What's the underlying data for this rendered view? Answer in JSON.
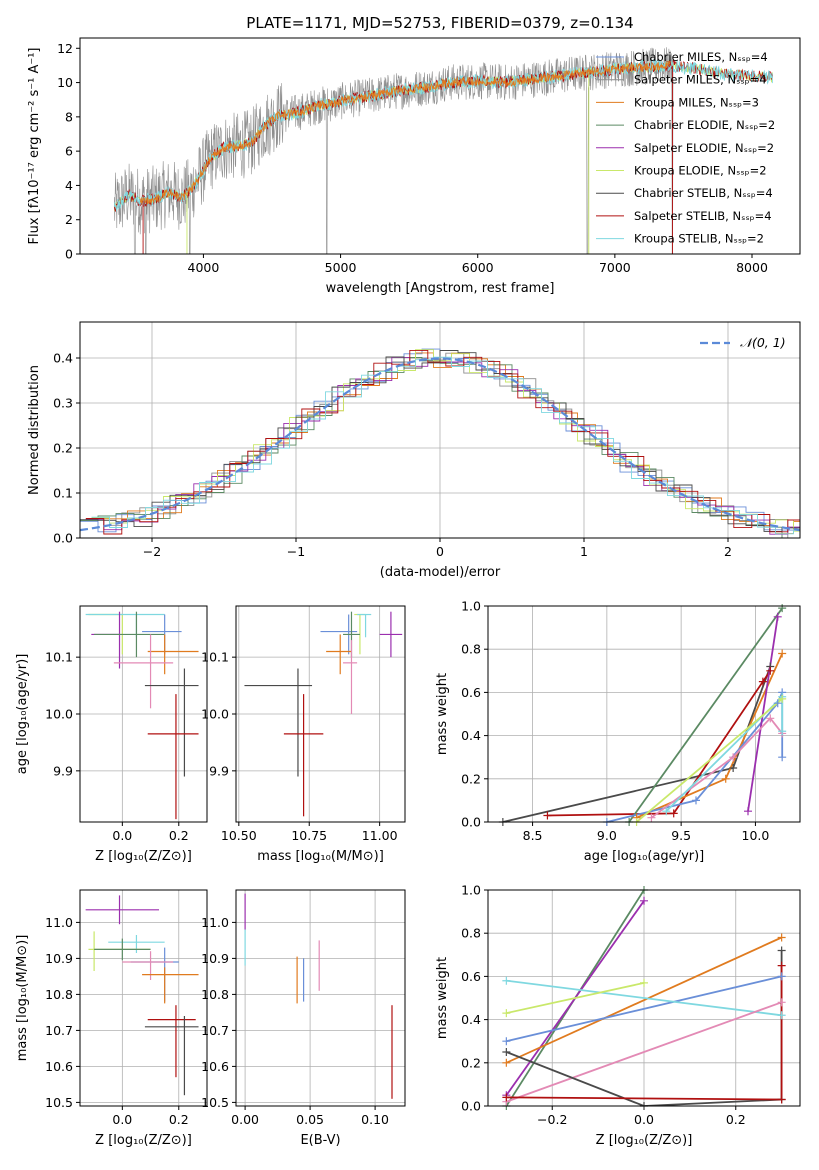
{
  "palette": {
    "chabrier_miles": "#6a8fd8",
    "salpeter_miles": "#8e8e8e",
    "kroupa_miles": "#e07b1f",
    "chabrier_elodie": "#5b8a63",
    "salpeter_elodie": "#9b2fae",
    "kroupa_elodie": "#c9e86a",
    "chabrier_stelib": "#4a4a4a",
    "salpeter_stelib": "#b01010",
    "kroupa_stelib": "#7fd8e0",
    "pink": "#e38ab5",
    "normal_curve": "#5b8ad8",
    "grid": "#b0b0b0"
  },
  "chart_data": [
    {
      "id": "spectrum",
      "type": "line",
      "title": "PLATE=1171, MJD=52753, FIBERID=0379, z=0.134",
      "xlabel": "wavelength [Angstrom, rest frame]",
      "ylabel": "Flux [fλ10⁻¹⁷ erg cm⁻² s⁻¹ A⁻¹]",
      "xlim": [
        3100,
        8350
      ],
      "ylim": [
        0,
        12.6
      ],
      "xticks": [
        4000,
        5000,
        6000,
        7000,
        8000
      ],
      "yticks": [
        0,
        2,
        4,
        6,
        8,
        10,
        12
      ],
      "grid": false,
      "legend_position": "right",
      "legend": [
        "Chabrier MILES, Nₛₛₚ=4",
        "Salpeter MILES, Nₛₛₚ=4",
        "Kroupa MILES, Nₛₛₚ=3",
        "Chabrier ELODIE, Nₛₛₚ=2",
        "Salpeter ELODIE, Nₛₛₚ=2",
        "Kroupa ELODIE, Nₛₛₚ=2",
        "Chabrier STELIB, Nₛₛₚ=4",
        "Salpeter STELIB, Nₛₛₚ=4",
        "Kroupa STELIB, Nₛₛₚ=2"
      ],
      "continuum": [
        [
          3350,
          2.7
        ],
        [
          3450,
          3.4
        ],
        [
          3550,
          3.1
        ],
        [
          3650,
          3.2
        ],
        [
          3750,
          3.6
        ],
        [
          3850,
          3.3
        ],
        [
          3950,
          4.2
        ],
        [
          4050,
          5.6
        ],
        [
          4150,
          6.2
        ],
        [
          4250,
          6.3
        ],
        [
          4350,
          6.5
        ],
        [
          4450,
          7.5
        ],
        [
          4550,
          8.1
        ],
        [
          4650,
          8.2
        ],
        [
          4750,
          8.4
        ],
        [
          4850,
          8.7
        ],
        [
          4950,
          8.8
        ],
        [
          5050,
          9.0
        ],
        [
          5200,
          9.2
        ],
        [
          5400,
          9.5
        ],
        [
          5600,
          9.7
        ],
        [
          5800,
          10.0
        ],
        [
          6000,
          10.1
        ],
        [
          6200,
          10.0
        ],
        [
          6400,
          10.2
        ],
        [
          6600,
          10.4
        ],
        [
          6800,
          10.6
        ],
        [
          7000,
          10.8
        ],
        [
          7200,
          10.9
        ],
        [
          7400,
          11.0
        ],
        [
          7600,
          10.8
        ],
        [
          7800,
          10.5
        ],
        [
          8000,
          10.4
        ],
        [
          8150,
          10.3
        ]
      ],
      "data_dropouts": [
        3500,
        3580,
        3900,
        4900,
        6800,
        7420
      ]
    },
    {
      "id": "residuals",
      "type": "line",
      "xlabel": "(data-model)/error",
      "ylabel": "Normed distribution",
      "xlim": [
        -2.5,
        2.5
      ],
      "ylim": [
        0,
        0.48
      ],
      "xticks": [
        -2,
        -1,
        0,
        1,
        2
      ],
      "yticks": [
        0.0,
        0.1,
        0.2,
        0.3,
        0.4
      ],
      "grid": true,
      "legend_position": "top-right",
      "legend": [
        "𝒩(0, 1)"
      ],
      "hist_bin_width": 0.125
    },
    {
      "id": "age_vs_z",
      "type": "scatter",
      "xlabel": "Z [log₁₀(Z/Z⊙)]",
      "ylabel": "age  [log₁₀(age/yr)]",
      "xlim": [
        -0.15,
        0.3
      ],
      "ylim": [
        9.81,
        10.19
      ],
      "xticks": [
        0.0,
        0.2
      ],
      "yticks": [
        9.9,
        10.0,
        10.1
      ],
      "grid": true,
      "points": [
        {
          "key": "kroupa_elodie",
          "x": 0.0,
          "y": 10.175,
          "xerr": [
            0.12,
            0.0
          ],
          "yerr": [
            0.07,
            0.0
          ]
        },
        {
          "key": "kroupa_stelib",
          "x": 0.05,
          "y": 10.175,
          "xerr": [
            0.18,
            0.1
          ],
          "yerr": [
            0.04,
            0.0
          ]
        },
        {
          "key": "salpeter_elodie",
          "x": -0.01,
          "y": 10.14,
          "xerr": [
            0.1,
            0.0
          ],
          "yerr": [
            0.06,
            0.04
          ]
        },
        {
          "key": "chabrier_elodie",
          "x": 0.05,
          "y": 10.14,
          "xerr": [
            0.15,
            0.1
          ],
          "yerr": [
            0.04,
            0.04
          ]
        },
        {
          "key": "chabrier_miles",
          "x": 0.15,
          "y": 10.145,
          "xerr": [
            0.08,
            0.06
          ],
          "yerr": [
            0.04,
            0.03
          ]
        },
        {
          "key": "kroupa_miles",
          "x": 0.15,
          "y": 10.11,
          "xerr": [
            0.06,
            0.12
          ],
          "yerr": [
            0.04,
            0.03
          ]
        },
        {
          "key": "pink",
          "x": 0.1,
          "y": 10.09,
          "xerr": [
            0.13,
            0.08
          ],
          "yerr": [
            0.08,
            0.05
          ]
        },
        {
          "key": "chabrier_stelib",
          "x": 0.22,
          "y": 10.05,
          "xerr": [
            0.14,
            0.05
          ],
          "yerr": [
            0.16,
            0.03
          ]
        },
        {
          "key": "salpeter_stelib",
          "x": 0.19,
          "y": 9.965,
          "xerr": [
            0.1,
            0.08
          ],
          "yerr": [
            0.15,
            0.07
          ]
        }
      ]
    },
    {
      "id": "age_vs_mass",
      "type": "scatter",
      "xlabel": "mass [log₁₀(M/M⊙)]",
      "ylabel": "",
      "xlim": [
        10.49,
        11.09
      ],
      "ylim": [
        9.81,
        10.19
      ],
      "xticks": [
        10.5,
        10.75,
        11.0
      ],
      "yticks": [
        9.9,
        10.0,
        10.1
      ],
      "grid": true,
      "points": [
        {
          "key": "kroupa_elodie",
          "x": 10.93,
          "y": 10.175,
          "xerr": [
            0.02,
            0.02
          ],
          "yerr": [
            0.07,
            0.0
          ]
        },
        {
          "key": "kroupa_stelib",
          "x": 10.95,
          "y": 10.175,
          "xerr": [
            0.03,
            0.02
          ],
          "yerr": [
            0.04,
            0.0
          ]
        },
        {
          "key": "chabrier_miles",
          "x": 10.89,
          "y": 10.145,
          "xerr": [
            0.1,
            0.03
          ],
          "yerr": [
            0.04,
            0.03
          ]
        },
        {
          "key": "chabrier_elodie",
          "x": 10.9,
          "y": 10.14,
          "xerr": [
            0.03,
            0.03
          ],
          "yerr": [
            0.04,
            0.04
          ]
        },
        {
          "key": "salpeter_elodie",
          "x": 11.04,
          "y": 10.14,
          "xerr": [
            0.04,
            0.04
          ],
          "yerr": [
            0.04,
            0.04
          ]
        },
        {
          "key": "kroupa_miles",
          "x": 10.86,
          "y": 10.11,
          "xerr": [
            0.05,
            0.04
          ],
          "yerr": [
            0.04,
            0.03
          ]
        },
        {
          "key": "pink",
          "x": 10.9,
          "y": 10.09,
          "xerr": [
            0.03,
            0.02
          ],
          "yerr": [
            0.09,
            0.04
          ]
        },
        {
          "key": "chabrier_stelib",
          "x": 10.71,
          "y": 10.05,
          "xerr": [
            0.19,
            0.05
          ],
          "yerr": [
            0.16,
            0.03
          ]
        },
        {
          "key": "salpeter_stelib",
          "x": 10.73,
          "y": 9.965,
          "xerr": [
            0.07,
            0.07
          ],
          "yerr": [
            0.145,
            0.07
          ]
        }
      ]
    },
    {
      "id": "massweight_vs_age",
      "type": "line",
      "xlabel": "age  [log₁₀(age/yr)]",
      "ylabel": "mass weight",
      "xlim": [
        8.2,
        10.3
      ],
      "ylim": [
        0,
        1
      ],
      "xticks": [
        8.5,
        9.0,
        9.5,
        10.0
      ],
      "yticks": [
        0.0,
        0.2,
        0.4,
        0.6,
        0.8,
        1.0
      ],
      "grid": true,
      "series": [
        {
          "key": "chabrier_stelib",
          "points": [
            [
              8.3,
              0.0
            ],
            [
              9.85,
              0.25
            ],
            [
              10.1,
              0.72
            ]
          ]
        },
        {
          "key": "salpeter_stelib",
          "points": [
            [
              8.6,
              0.03
            ],
            [
              9.45,
              0.04
            ],
            [
              10.05,
              0.65
            ],
            [
              10.1,
              0.7
            ]
          ]
        },
        {
          "key": "chabrier_elodie",
          "points": [
            [
              9.15,
              0.0
            ],
            [
              10.18,
              0.99
            ]
          ]
        },
        {
          "key": "kroupa_miles",
          "points": [
            [
              9.2,
              0.02
            ],
            [
              9.8,
              0.2
            ],
            [
              10.18,
              0.78
            ]
          ]
        },
        {
          "key": "chabrier_miles",
          "points": [
            [
              9.0,
              0.0
            ],
            [
              9.6,
              0.1
            ],
            [
              10.15,
              0.55
            ],
            [
              10.18,
              0.6
            ],
            [
              10.18,
              0.3
            ]
          ]
        },
        {
          "key": "salpeter_elodie",
          "points": [
            [
              9.95,
              0.05
            ],
            [
              10.15,
              0.95
            ]
          ]
        },
        {
          "key": "pink",
          "points": [
            [
              9.3,
              0.02
            ],
            [
              9.85,
              0.3
            ],
            [
              10.1,
              0.48
            ],
            [
              10.18,
              0.41
            ]
          ]
        },
        {
          "key": "kroupa_stelib",
          "points": [
            [
              9.4,
              0.05
            ],
            [
              10.18,
              0.58
            ],
            [
              10.18,
              0.42
            ]
          ]
        },
        {
          "key": "kroupa_elodie",
          "points": [
            [
              9.2,
              0.0
            ],
            [
              10.18,
              0.57
            ]
          ]
        }
      ]
    },
    {
      "id": "mass_vs_z",
      "type": "scatter",
      "xlabel": "Z [log₁₀(Z/Z⊙)]",
      "ylabel": "mass [log₁₀(M/M⊙)]",
      "xlim": [
        -0.15,
        0.3
      ],
      "ylim": [
        10.49,
        11.09
      ],
      "xticks": [
        0.0,
        0.2
      ],
      "yticks": [
        10.5,
        10.6,
        10.7,
        10.8,
        10.9,
        11.0
      ],
      "grid": true,
      "points": [
        {
          "key": "salpeter_elodie",
          "x": -0.01,
          "y": 11.035,
          "xerr": [
            0.12,
            0.14
          ],
          "yerr": [
            0.04,
            0.04
          ]
        },
        {
          "key": "kroupa_stelib",
          "x": 0.05,
          "y": 10.945,
          "xerr": [
            0.1,
            0.1
          ],
          "yerr": [
            0.03,
            0.02
          ]
        },
        {
          "key": "kroupa_elodie",
          "x": -0.1,
          "y": 10.925,
          "xerr": [
            0.02,
            0.2
          ],
          "yerr": [
            0.06,
            0.05
          ]
        },
        {
          "key": "chabrier_elodie",
          "x": 0.0,
          "y": 10.925,
          "xerr": [
            0.1,
            0.1
          ],
          "yerr": [
            0.03,
            0.03
          ]
        },
        {
          "key": "chabrier_miles",
          "x": 0.15,
          "y": 10.89,
          "xerr": [
            0.12,
            0.05
          ],
          "yerr": [
            0.11,
            0.04
          ]
        },
        {
          "key": "pink",
          "x": 0.1,
          "y": 10.89,
          "xerr": [
            0.1,
            0.08
          ],
          "yerr": [
            0.05,
            0.03
          ]
        },
        {
          "key": "kroupa_miles",
          "x": 0.15,
          "y": 10.855,
          "xerr": [
            0.08,
            0.12
          ],
          "yerr": [
            0.08,
            0.02
          ]
        },
        {
          "key": "salpeter_stelib",
          "x": 0.19,
          "y": 10.73,
          "xerr": [
            0.1,
            0.07
          ],
          "yerr": [
            0.16,
            0.04
          ]
        },
        {
          "key": "chabrier_stelib",
          "x": 0.22,
          "y": 10.71,
          "xerr": [
            0.14,
            0.05
          ],
          "yerr": [
            0.19,
            0.03
          ]
        }
      ]
    },
    {
      "id": "mass_vs_ebv",
      "type": "scatter",
      "xlabel": "E(B-V)",
      "ylabel": "",
      "xlim": [
        -0.007,
        0.123
      ],
      "ylim": [
        10.49,
        11.09
      ],
      "xticks": [
        0.0,
        0.05,
        0.1
      ],
      "yticks": [
        10.5,
        10.6,
        10.7,
        10.8,
        10.9,
        11.0
      ],
      "grid": true,
      "points": [
        {
          "key": "salpeter_elodie",
          "x": 0.0,
          "y": 11.03,
          "xerr": [
            0,
            0
          ],
          "yerr": [
            0.05,
            0.05
          ]
        },
        {
          "key": "kroupa_stelib",
          "x": 0.0,
          "y": 10.93,
          "xerr": [
            0,
            0
          ],
          "yerr": [
            0.05,
            0.05
          ]
        },
        {
          "key": "kroupa_miles",
          "x": 0.04,
          "y": 10.855,
          "xerr": [
            0,
            0
          ],
          "yerr": [
            0.08,
            0.05
          ]
        },
        {
          "key": "chabrier_miles",
          "x": 0.045,
          "y": 10.84,
          "xerr": [
            0,
            0
          ],
          "yerr": [
            0.06,
            0.06
          ]
        },
        {
          "key": "pink",
          "x": 0.057,
          "y": 10.87,
          "xerr": [
            0,
            0
          ],
          "yerr": [
            0.06,
            0.08
          ]
        },
        {
          "key": "salpeter_stelib",
          "x": 0.113,
          "y": 10.69,
          "xerr": [
            0,
            0
          ],
          "yerr": [
            0.18,
            0.08
          ]
        }
      ]
    },
    {
      "id": "massweight_vs_z",
      "type": "line",
      "xlabel": "Z [log₁₀(Z/Z⊙)]",
      "ylabel": "mass weight",
      "xlim": [
        -0.34,
        0.34
      ],
      "ylim": [
        0,
        1
      ],
      "xticks": [
        -0.2,
        0.0,
        0.2
      ],
      "yticks": [
        0.0,
        0.2,
        0.4,
        0.6,
        0.8,
        1.0
      ],
      "grid": true,
      "series": [
        {
          "key": "chabrier_elodie",
          "points": [
            [
              -0.3,
              0.0
            ],
            [
              0.0,
              1.0
            ]
          ]
        },
        {
          "key": "salpeter_elodie",
          "points": [
            [
              -0.3,
              0.05
            ],
            [
              0.0,
              0.95
            ]
          ]
        },
        {
          "key": "kroupa_miles",
          "points": [
            [
              -0.3,
              0.2
            ],
            [
              0.3,
              0.78
            ]
          ]
        },
        {
          "key": "chabrier_miles",
          "points": [
            [
              -0.3,
              0.3
            ],
            [
              0.3,
              0.6
            ]
          ]
        },
        {
          "key": "kroupa_stelib",
          "points": [
            [
              -0.3,
              0.58
            ],
            [
              0.3,
              0.42
            ]
          ]
        },
        {
          "key": "kroupa_elodie",
          "points": [
            [
              -0.3,
              0.43
            ],
            [
              0.0,
              0.57
            ]
          ]
        },
        {
          "key": "pink",
          "points": [
            [
              -0.3,
              0.02
            ],
            [
              0.3,
              0.48
            ]
          ]
        },
        {
          "key": "chabrier_stelib",
          "points": [
            [
              -0.3,
              0.25
            ],
            [
              0.0,
              0.0
            ],
            [
              0.3,
              0.03
            ],
            [
              0.3,
              0.72
            ]
          ]
        },
        {
          "key": "salpeter_stelib",
          "points": [
            [
              -0.3,
              0.04
            ],
            [
              0.3,
              0.03
            ],
            [
              0.3,
              0.65
            ]
          ]
        }
      ]
    }
  ]
}
